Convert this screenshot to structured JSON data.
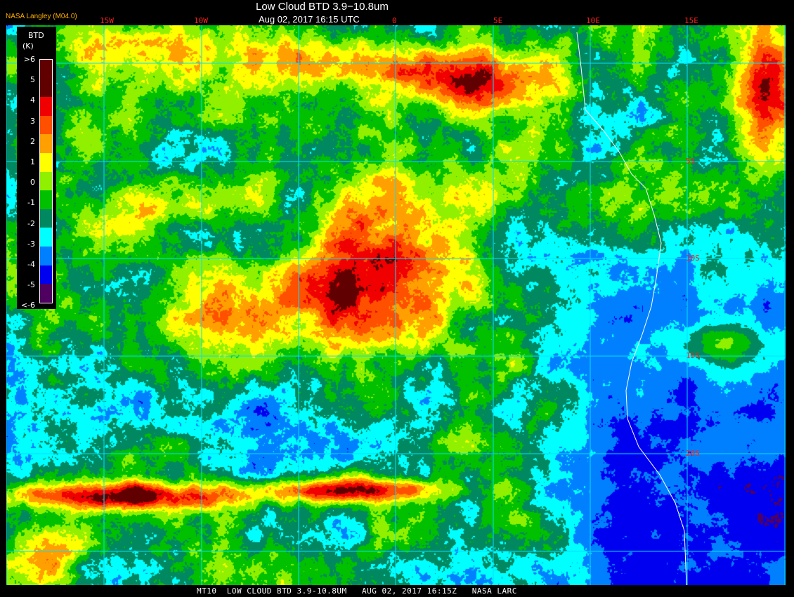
{
  "header": {
    "title": "Low Cloud BTD 3.9−10.8um",
    "datetime": "Aug 02, 2017 16:15 UTC",
    "provider": "NASA Langley (M04.0)"
  },
  "map": {
    "longitude_labels": [
      "15W",
      "10W",
      "0",
      "5E",
      "10E",
      "15E"
    ],
    "latitude_labels": [
      "5S",
      "10S",
      "15S",
      "20S"
    ],
    "gridline_color": "#00e0ff",
    "coastline_color": "#ffffff"
  },
  "legend": {
    "title": "BTD",
    "unit": "(K)",
    "labels": [
      ">6",
      "5",
      "4",
      "3",
      "2",
      "1",
      "0",
      "-1",
      "-2",
      "-3",
      "-4",
      "-5",
      "<-6"
    ],
    "colors": [
      "#600000",
      "#600000",
      "#f00000",
      "#ff5000",
      "#ffa000",
      "#ffff00",
      "#90f000",
      "#00c000",
      "#008860",
      "#00ffff",
      "#0080ff",
      "#0000f0",
      "#500060"
    ]
  },
  "footer": {
    "text": "MT10  LOW CLOUD BTD 3.9-10.8UM   AUG 02, 2017 16:15Z   NASA LARC"
  }
}
